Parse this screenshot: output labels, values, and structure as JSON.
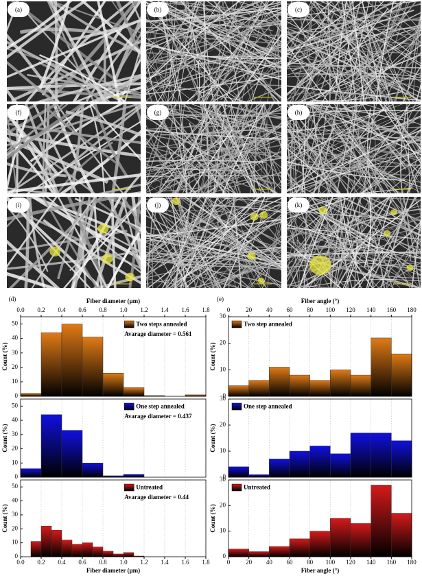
{
  "images": [
    {
      "label": "(a)"
    },
    {
      "label": "(b)"
    },
    {
      "label": "(c)"
    },
    {
      "label": "(f)"
    },
    {
      "label": "(g)"
    },
    {
      "label": "(h)"
    },
    {
      "label": "(i)"
    },
    {
      "label": "(j)"
    },
    {
      "label": "(k)"
    }
  ],
  "chart_data": [
    {
      "type": "histogram",
      "panel_label": "(d)",
      "xlabel": "Fiber diameter (μm)",
      "ylabel": "Count (%)",
      "xlim": [
        0,
        1.8
      ],
      "xticks": [
        {
          "value": 0,
          "label": "0.0"
        },
        0.2,
        0.4,
        0.6,
        0.8,
        {
          "value": 1,
          "label": "1.0"
        },
        1.2,
        1.4,
        1.6,
        1.8
      ],
      "grid": true,
      "legend": "upper right",
      "subplots": [
        {
          "name": "Two steps annealed",
          "color": "#e07b16",
          "annotation": "Avarage diameter = 0.561",
          "ylim": [
            0,
            55
          ],
          "yticks": [
            0,
            10,
            20,
            30,
            40,
            50
          ],
          "bins": [
            0,
            0.2,
            0.4,
            0.6,
            0.8,
            1,
            1.2,
            1.4,
            1.6,
            1.8
          ],
          "values": [
            2,
            44,
            50,
            41,
            16,
            6,
            0.5,
            0,
            1
          ]
        },
        {
          "name": "One step annealed",
          "color": "#1010e0",
          "annotation": "Avarage diameter = 0.437",
          "ylim": [
            0,
            55
          ],
          "yticks": [
            0,
            10,
            20,
            30,
            40,
            50
          ],
          "bins": [
            0,
            0.2,
            0.4,
            0.6,
            0.8,
            1,
            1.2,
            1.4,
            1.6,
            1.8
          ],
          "values": [
            6,
            44,
            33,
            10,
            1,
            2,
            0,
            0,
            0
          ]
        },
        {
          "name": "Untreated",
          "color": "#d41a1a",
          "annotation": "Avarage diameter = 0.44",
          "ylim": [
            0,
            55
          ],
          "yticks": [
            0,
            10,
            20,
            30,
            40,
            50
          ],
          "bins": [
            0.1,
            0.2,
            0.3,
            0.4,
            0.5,
            0.6,
            0.7,
            0.8,
            0.9,
            1,
            1.1,
            1.2
          ],
          "values": [
            11,
            22,
            19,
            12,
            9,
            10,
            7,
            4,
            2,
            3,
            0.5
          ]
        }
      ]
    },
    {
      "type": "histogram",
      "panel_label": "(e)",
      "xlabel": "Fiber angle (°)",
      "ylabel": "Count (%)",
      "xlim": [
        0,
        180
      ],
      "xticks": [
        0,
        20,
        40,
        60,
        80,
        100,
        120,
        140,
        160,
        180
      ],
      "grid": true,
      "legend": "upper left",
      "subplots": [
        {
          "name": "Two step annealed",
          "color": "#e07b16",
          "ylim": [
            0,
            30
          ],
          "yticks": [
            0,
            10,
            20,
            30
          ],
          "bins": [
            0,
            20,
            40,
            60,
            80,
            100,
            120,
            140,
            160,
            180
          ],
          "values": [
            4,
            6,
            11,
            8,
            6,
            10,
            8,
            22,
            16
          ]
        },
        {
          "name": "One step annealed",
          "color": "#1010e0",
          "ylim": [
            0,
            30
          ],
          "yticks": [
            0,
            10,
            20,
            30
          ],
          "bins": [
            0,
            20,
            40,
            60,
            80,
            100,
            120,
            140,
            160,
            180
          ],
          "values": [
            4,
            1,
            7,
            10,
            12,
            9,
            17,
            17,
            14
          ]
        },
        {
          "name": "Untreated",
          "color": "#d41a1a",
          "ylim": [
            0,
            30
          ],
          "yticks": [
            0,
            10,
            20,
            30
          ],
          "bins": [
            0,
            20,
            40,
            60,
            80,
            100,
            120,
            140,
            160,
            180
          ],
          "values": [
            3,
            2,
            4,
            7,
            10,
            15,
            13,
            28,
            17
          ]
        }
      ]
    }
  ]
}
